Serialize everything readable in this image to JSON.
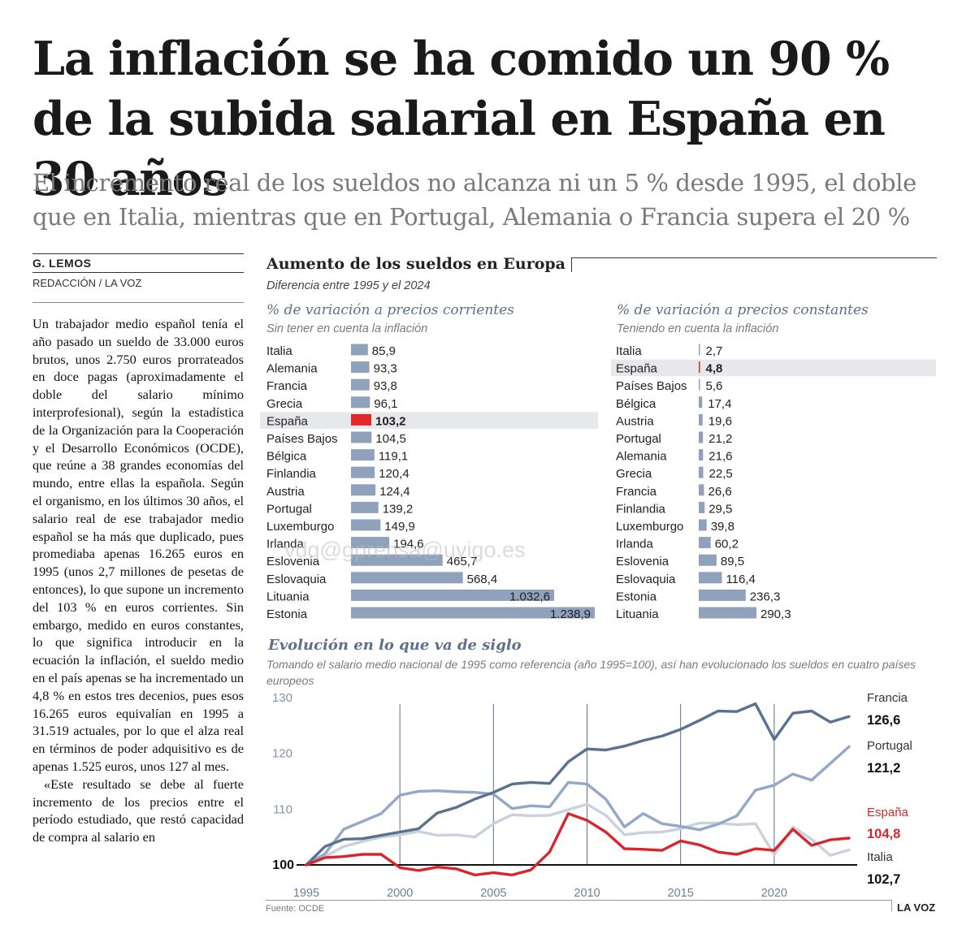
{
  "article": {
    "headline": "La inflación se ha comido un 90 % de la subida salarial en España en 30 años",
    "subhead": "El incremento real de los sueldos no alcanza ni un 5 % desde 1995, el doble que en Italia, mientras que en Portugal, Alemania o Francia supera el 20 %",
    "author": "G. LEMOS",
    "desk": "REDACCIÓN / LA VOZ",
    "body": [
      "Un trabajador medio español tenía el año pasado un sueldo de 33.000 euros brutos, unos 2.750 euros prorrateados en doce pagas (aproximadamente el doble del salario mínimo interprofesional), según la estadística de la Organización para la Cooperación y el Desarrollo Económicos (OCDE), que reúne a 38 grandes economías del mundo, entre ellas la española. Según el organismo, en los últimos 30 años, el salario real de ese trabajador medio español se ha más que duplicado, pues promediaba apenas 16.265 euros en 1995 (unos 2,7 millones de pesetas de entonces), lo que supone un incremento del 103 % en euros corrientes. Sin embargo, medido en euros constantes, lo que significa introducir en la ecuación la inflación, el sueldo medio en el país apenas se ha incrementado un 4,8 % en estos tres decenios, pues esos 16.265 euros equivalían en 1995 a 31.519 actuales, por lo que el alza real en términos de poder adquisitivo es de apenas 1.525 euros, unos 127 al mes.",
      "«Este resultado se debe al fuerte incremento de los precios entre el período estudiado, que restó capacidad de compra al salario en"
    ]
  },
  "graphic": {
    "title": "Aumento de los sueldos en Europa",
    "subtitle": "Diferencia entre 1995 y el 2024",
    "source": "Fuente: OCDE",
    "brand": "LA VOZ",
    "watermark": "vdg@gprensa@uvigo.es"
  },
  "colors": {
    "bar": "#8fa1bb",
    "highlight": "#e3262b",
    "highlight_bg": "#e6e8ec",
    "francia": "#5b7190",
    "portugal": "#92a8c6",
    "espana": "#d8262c",
    "italia": "#c9d1dc"
  },
  "chart_data": [
    {
      "type": "bar",
      "orientation": "horizontal",
      "title": "% de variación a precios corrientes",
      "subtitle": "Sin tener en cuenta la inflación",
      "highlight": "España",
      "categories": [
        "Italia",
        "Alemania",
        "Francia",
        "Grecia",
        "España",
        "Países Bajos",
        "Bélgica",
        "Finlandia",
        "Austria",
        "Portugal",
        "Luxemburgo",
        "Irlanda",
        "Eslovenia",
        "Eslovaquia",
        "Lituania",
        "Estonia"
      ],
      "values": [
        85.9,
        93.3,
        93.8,
        96.1,
        103.2,
        104.5,
        119.1,
        120.4,
        124.4,
        139.2,
        149.9,
        194.6,
        465.7,
        568.4,
        1032.6,
        1238.9
      ],
      "labels": [
        "85,9",
        "93,3",
        "93,8",
        "96,1",
        "103,2",
        "104,5",
        "119,1",
        "120,4",
        "124,4",
        "139,2",
        "149,9",
        "194,6",
        "465,7",
        "568,4",
        "1.032,6",
        "1.238,9"
      ],
      "xlim": [
        0,
        1238.9
      ]
    },
    {
      "type": "bar",
      "orientation": "horizontal",
      "title": "% de variación a precios constantes",
      "subtitle": "Teniendo en cuenta la inflación",
      "highlight": "España",
      "categories": [
        "Italia",
        "España",
        "Países Bajos",
        "Bélgica",
        "Austria",
        "Portugal",
        "Alemania",
        "Grecia",
        "Francia",
        "Finlandia",
        "Luxemburgo",
        "Irlanda",
        "Eslovenia",
        "Eslovaquia",
        "Estonia",
        "Lituania"
      ],
      "values": [
        2.7,
        4.8,
        5.6,
        17.4,
        19.6,
        21.2,
        21.6,
        22.5,
        26.6,
        29.5,
        39.8,
        60.2,
        89.5,
        116.4,
        236.3,
        290.3
      ],
      "labels": [
        "2,7",
        "4,8",
        "5,6",
        "17,4",
        "19,6",
        "21,2",
        "21,6",
        "22,5",
        "26,6",
        "29,5",
        "39,8",
        "60,2",
        "89,5",
        "116,4",
        "236,3",
        "290,3"
      ],
      "xlim": [
        0,
        290.3
      ]
    },
    {
      "type": "line",
      "title": "Evolución en lo que va de siglo",
      "subtitle": "Tomando el salario medio nacional de 1995 como referencia (año 1995=100), así han evolucionado los sueldos en cuatro países europeos",
      "xlim": [
        1995,
        2024
      ],
      "ylim": [
        100,
        130
      ],
      "yticks": [
        100,
        110,
        120,
        130
      ],
      "xticks": [
        1995,
        2000,
        2005,
        2010,
        2015,
        2020
      ],
      "x": [
        1995,
        1996,
        1997,
        1998,
        1999,
        2000,
        2001,
        2002,
        2003,
        2004,
        2005,
        2006,
        2007,
        2008,
        2009,
        2010,
        2011,
        2012,
        2013,
        2014,
        2015,
        2016,
        2017,
        2018,
        2019,
        2020,
        2021,
        2022,
        2023,
        2024
      ],
      "series": [
        {
          "name": "Francia",
          "key": "francia",
          "end_label": "126,6",
          "values": [
            100,
            103.3,
            104.6,
            104.7,
            105.3,
            105.9,
            106.5,
            109.3,
            110.3,
            111.8,
            113.0,
            114.5,
            114.8,
            114.6,
            118.5,
            120.8,
            120.6,
            121.3,
            122.3,
            123.1,
            124.3,
            125.9,
            127.6,
            127.5,
            128.9,
            122.5,
            127.2,
            127.6,
            125.6,
            126.6
          ]
        },
        {
          "name": "Portugal",
          "key": "portugal",
          "end_label": "121,2",
          "values": [
            100,
            102.0,
            106.4,
            107.8,
            109.2,
            112.5,
            113.2,
            113.3,
            113.1,
            113.0,
            112.7,
            110.1,
            110.6,
            110.4,
            114.8,
            114.5,
            111.8,
            106.8,
            109.2,
            107.4,
            106.9,
            106.3,
            107.3,
            108.8,
            113.4,
            114.3,
            116.3,
            115.2,
            118.2,
            121.2
          ]
        },
        {
          "name": "España",
          "key": "espana",
          "end_label": "104,8",
          "values": [
            100,
            101.3,
            101.5,
            101.9,
            101.9,
            99.5,
            99.0,
            99.6,
            99.3,
            98.2,
            98.6,
            98.2,
            99.1,
            102.3,
            109.2,
            108.0,
            105.9,
            102.9,
            102.8,
            102.6,
            104.3,
            103.6,
            102.3,
            101.9,
            102.9,
            102.6,
            106.4,
            103.5,
            104.5,
            104.8
          ]
        },
        {
          "name": "Italia",
          "key": "italia",
          "end_label": "102,7",
          "values": [
            100,
            101.5,
            103.3,
            104.2,
            105.0,
            105.4,
            106.0,
            105.3,
            105.4,
            105.0,
            107.4,
            109.0,
            108.8,
            108.9,
            109.9,
            110.9,
            108.9,
            105.4,
            105.8,
            105.9,
            106.5,
            107.5,
            107.5,
            107.2,
            107.4,
            101.8,
            106.8,
            104.6,
            101.7,
            102.7
          ]
        }
      ]
    }
  ]
}
